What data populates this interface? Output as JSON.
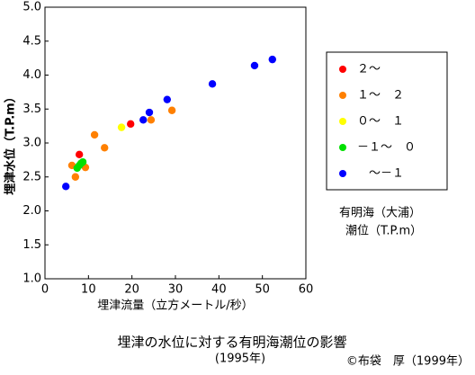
{
  "chart_data": {
    "type": "scatter",
    "title": "埋津の水位に対する有明海潮位の影響",
    "subtitle": "(1995年)",
    "credit": "©布袋　厚（1999年）",
    "xlabel": "埋津流量（立方メートル/秒）",
    "ylabel": "埋津水位（T.P.m）",
    "legend_title": [
      "有明海（大浦）",
      "潮位（T.P.m）"
    ],
    "xlim": [
      0,
      60
    ],
    "xticks": [
      0,
      10,
      20,
      30,
      40,
      50,
      60
    ],
    "ylim": [
      1,
      5
    ],
    "yticks": [
      {
        "value": 1,
        "label": "1.0"
      },
      {
        "value": 1.5,
        "label": "1.5"
      },
      {
        "value": 2,
        "label": "2.0"
      },
      {
        "value": 2.5,
        "label": "2.5"
      },
      {
        "value": 3,
        "label": "3.0"
      },
      {
        "value": 3.5,
        "label": "3.5"
      },
      {
        "value": 4,
        "label": "4.0"
      },
      {
        "value": 4.5,
        "label": "4.5"
      },
      {
        "value": 5,
        "label": "5.0"
      }
    ],
    "grid": false,
    "series": [
      {
        "name": "２～",
        "color": "#ff0000",
        "x": [
          7.9,
          19.7
        ],
        "values": [
          2.83,
          3.28
        ]
      },
      {
        "name": "１～　２",
        "color": "#ff8000",
        "x": [
          6.2,
          7.0,
          9.3,
          11.4,
          13.7,
          24.4,
          29.2
        ],
        "values": [
          2.67,
          2.5,
          2.64,
          3.12,
          2.93,
          3.34,
          3.48
        ]
      },
      {
        "name": "０～　１",
        "color": "#ffff00",
        "x": [
          17.6
        ],
        "values": [
          3.23
        ]
      },
      {
        "name": "－１～　０",
        "color": "#00e000",
        "x": [
          7.4,
          7.9,
          8.3,
          8.7
        ],
        "values": [
          2.63,
          2.67,
          2.7,
          2.72
        ]
      },
      {
        "name": "　～－１",
        "color": "#0000ff",
        "x": [
          4.8,
          22.6,
          24.0,
          28.1,
          38.5,
          48.2,
          52.3
        ],
        "values": [
          2.36,
          3.34,
          3.45,
          3.64,
          3.87,
          4.14,
          4.23
        ]
      }
    ]
  }
}
